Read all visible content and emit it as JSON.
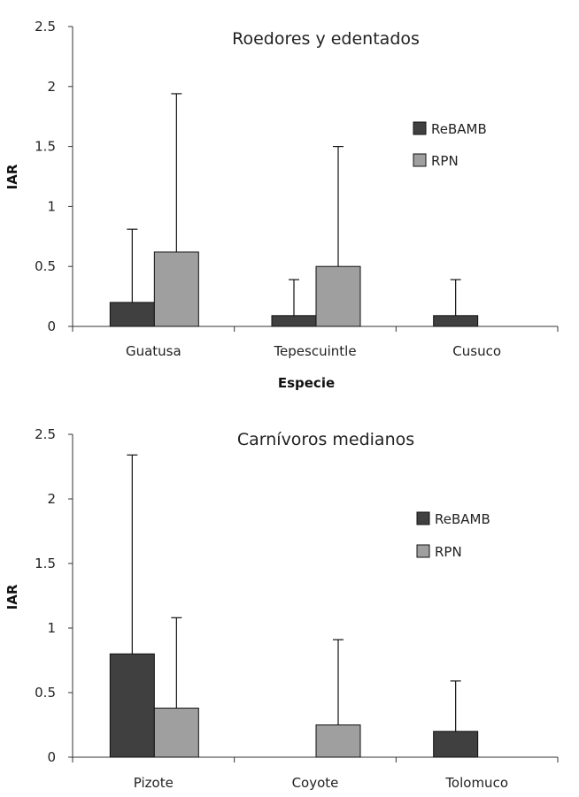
{
  "chart_data": [
    {
      "type": "bar",
      "title": "Roedores y edentados",
      "xlabel": "Especie",
      "ylabel": "IAR",
      "ylim": [
        0,
        2.5
      ],
      "yticks": [
        "0",
        "0.5",
        "1",
        "1.5",
        "2",
        "2.5"
      ],
      "categories": [
        "Guatusa",
        "Tepescuintle",
        "Cusuco"
      ],
      "legend_position": "right",
      "series": [
        {
          "name": "ReBAMB",
          "color": "#404040",
          "values": [
            0.2,
            0.09,
            0.09
          ],
          "errors": [
            0.61,
            0.3,
            0.3
          ]
        },
        {
          "name": "RPN",
          "color": "#9f9f9f",
          "values": [
            0.62,
            0.5,
            0
          ],
          "errors": [
            1.32,
            1.0,
            0
          ]
        }
      ]
    },
    {
      "type": "bar",
      "title": "Carnívoros medianos",
      "xlabel": "",
      "ylabel": "IAR",
      "ylim": [
        0,
        2.5
      ],
      "yticks": [
        "0",
        "0.5",
        "1",
        "1.5",
        "2",
        "2.5"
      ],
      "categories": [
        "Pizote",
        "Coyote",
        "Tolomuco"
      ],
      "legend_position": "right",
      "series": [
        {
          "name": "ReBAMB",
          "color": "#404040",
          "values": [
            0.8,
            0,
            0.2
          ],
          "errors": [
            1.54,
            0,
            0.39
          ]
        },
        {
          "name": "RPN",
          "color": "#9f9f9f",
          "values": [
            0.38,
            0.25,
            0
          ],
          "errors": [
            0.7,
            0.66,
            0
          ]
        }
      ]
    }
  ]
}
